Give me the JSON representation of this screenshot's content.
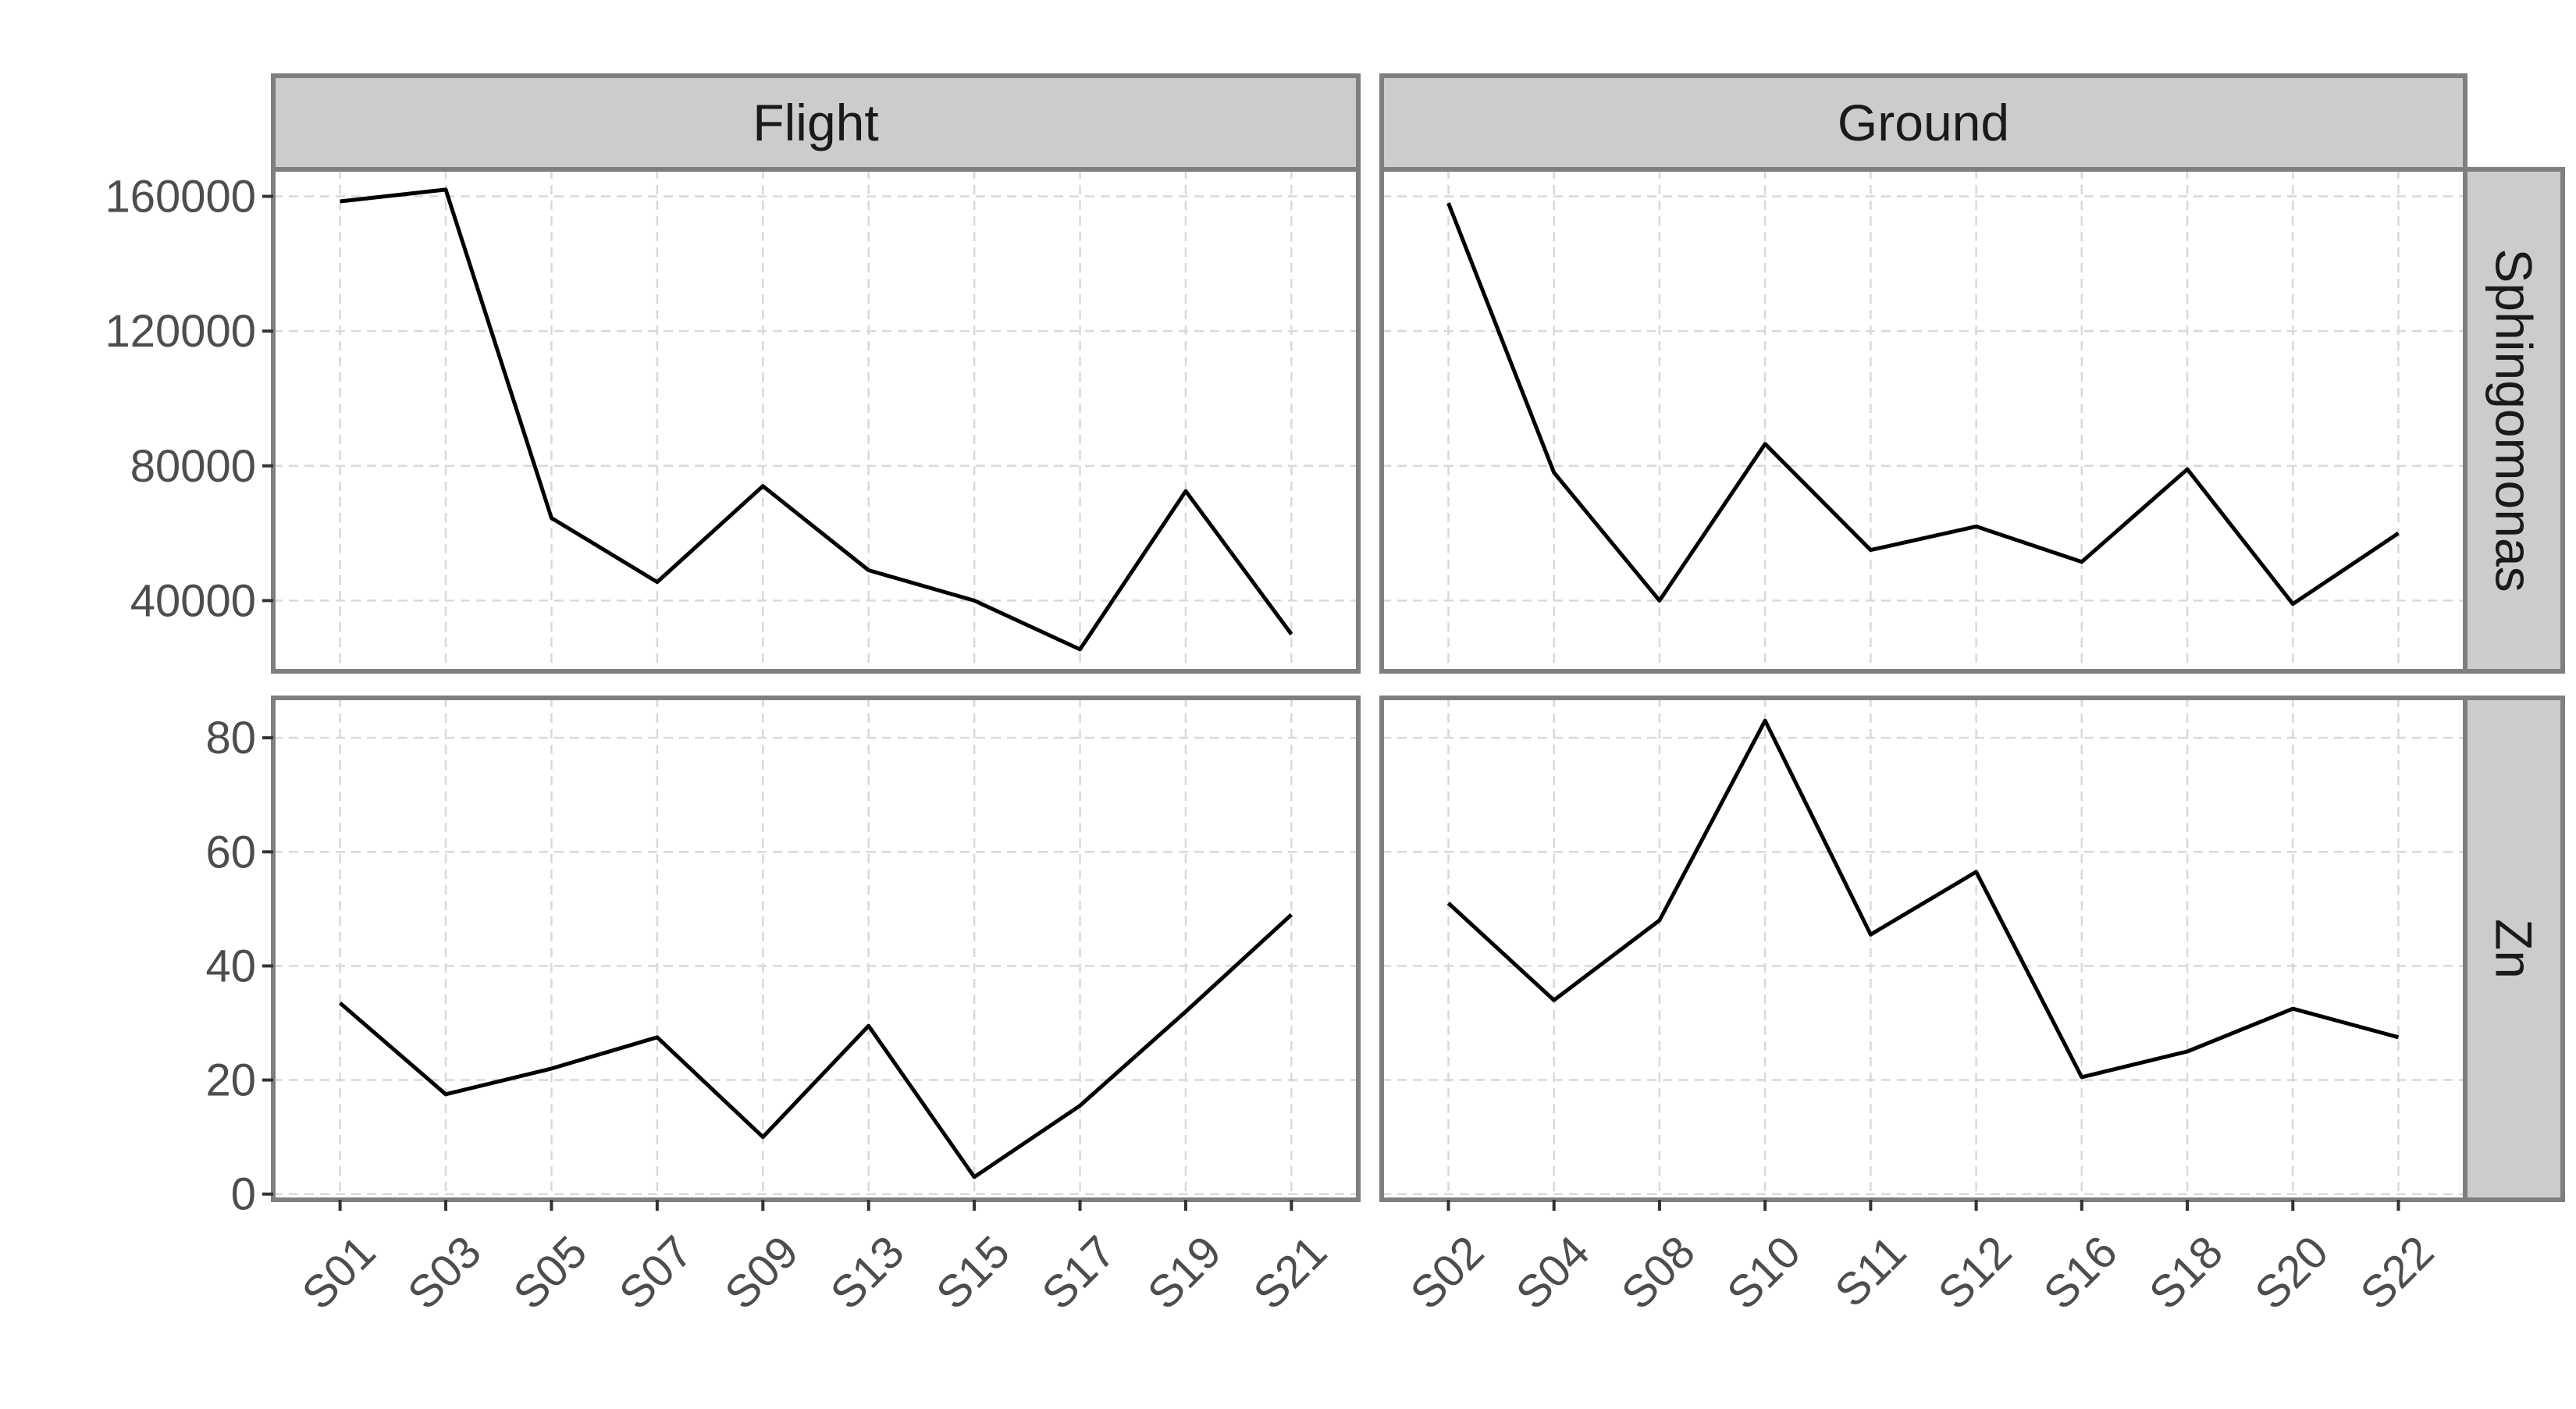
{
  "chart_data": {
    "type": "line",
    "facet_columns": [
      "Flight",
      "Ground"
    ],
    "facet_rows": [
      "Sphingomonas",
      "Zn"
    ],
    "x_categories": {
      "Flight": [
        "S01",
        "S03",
        "S05",
        "S07",
        "S09",
        "S13",
        "S15",
        "S17",
        "S19",
        "S21"
      ],
      "Ground": [
        "S02",
        "S04",
        "S08",
        "S10",
        "S11",
        "S12",
        "S16",
        "S18",
        "S20",
        "S22"
      ]
    },
    "y_axes": {
      "Sphingomonas": {
        "ylim": [
          19000,
          168000
        ],
        "ticks": [
          40000,
          80000,
          120000,
          160000
        ],
        "tick_labels": [
          "40000",
          "80000",
          "120000",
          "160000"
        ]
      },
      "Zn": {
        "ylim": [
          -1,
          87
        ],
        "ticks": [
          0,
          20,
          40,
          60,
          80
        ],
        "tick_labels": [
          "0",
          "20",
          "40",
          "60",
          "80"
        ]
      }
    },
    "panels": [
      {
        "column": "Flight",
        "row": "Sphingomonas",
        "values": [
          158500,
          162000,
          64500,
          45500,
          74000,
          49000,
          40000,
          25500,
          72500,
          30000
        ]
      },
      {
        "column": "Ground",
        "row": "Sphingomonas",
        "values": [
          158000,
          78000,
          40000,
          86500,
          55000,
          62000,
          51500,
          79000,
          39000,
          60000
        ]
      },
      {
        "column": "Flight",
        "row": "Zn",
        "values": [
          33.5,
          17.5,
          22,
          27.5,
          10,
          29.5,
          3,
          15.5,
          32,
          49
        ]
      },
      {
        "column": "Ground",
        "row": "Zn",
        "values": [
          51,
          34,
          48,
          83,
          45.5,
          56.5,
          20.5,
          25,
          32.5,
          27.5
        ]
      }
    ],
    "grid": true,
    "line_color": "#000000",
    "strip_fill": "#cccccc",
    "panel_border": "#7f7f7f",
    "gridline_color": "#d9d9d9"
  }
}
